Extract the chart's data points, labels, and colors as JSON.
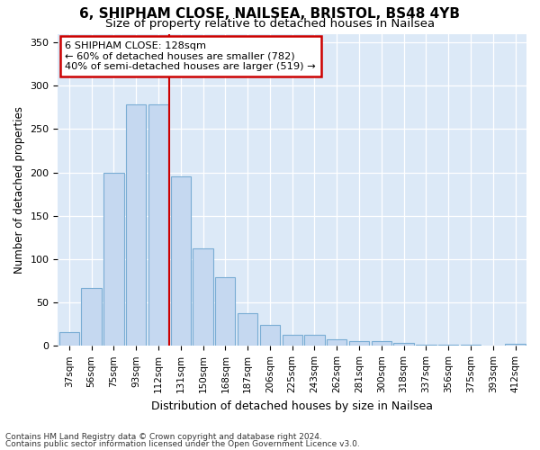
{
  "title1": "6, SHIPHAM CLOSE, NAILSEA, BRISTOL, BS48 4YB",
  "title2": "Size of property relative to detached houses in Nailsea",
  "xlabel": "Distribution of detached houses by size in Nailsea",
  "ylabel": "Number of detached properties",
  "categories": [
    "37sqm",
    "56sqm",
    "75sqm",
    "93sqm",
    "112sqm",
    "131sqm",
    "150sqm",
    "168sqm",
    "187sqm",
    "206sqm",
    "225sqm",
    "243sqm",
    "262sqm",
    "281sqm",
    "300sqm",
    "318sqm",
    "337sqm",
    "356sqm",
    "375sqm",
    "393sqm",
    "412sqm"
  ],
  "values": [
    16,
    67,
    200,
    278,
    278,
    195,
    112,
    79,
    38,
    24,
    13,
    13,
    8,
    6,
    6,
    3,
    1,
    1,
    1,
    0,
    2
  ],
  "bar_color": "#c5d8f0",
  "bar_edge_color": "#7aadd4",
  "vline_x_index": 5,
  "vline_color": "#cc0000",
  "annotation_line1": "6 SHIPHAM CLOSE: 128sqm",
  "annotation_line2": "← 60% of detached houses are smaller (782)",
  "annotation_line3": "40% of semi-detached houses are larger (519) →",
  "annotation_box_facecolor": "#ffffff",
  "annotation_box_edgecolor": "#cc0000",
  "footnote1": "Contains HM Land Registry data © Crown copyright and database right 2024.",
  "footnote2": "Contains public sector information licensed under the Open Government Licence v3.0.",
  "ylim": [
    0,
    360
  ],
  "bg_color": "#dce9f7",
  "grid_color": "#ffffff",
  "fig_facecolor": "#ffffff"
}
